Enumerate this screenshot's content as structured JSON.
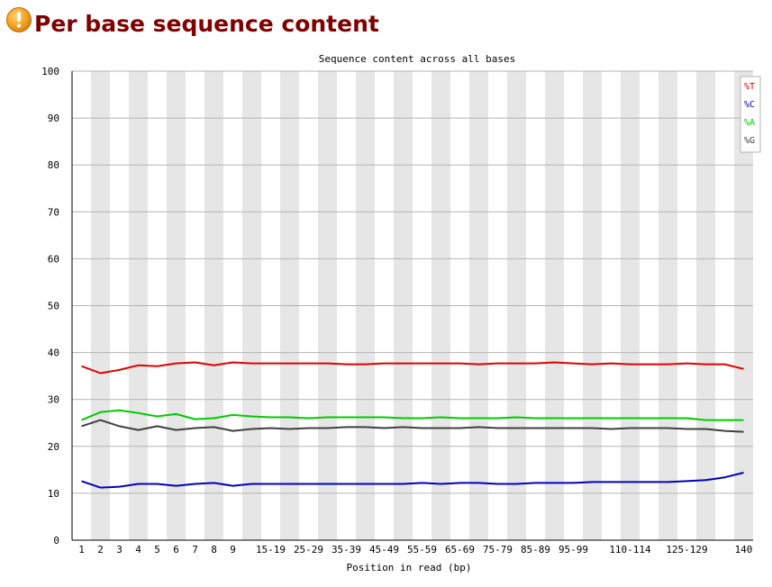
{
  "page": {
    "title": "Per base sequence content",
    "status_icon": "warning-icon",
    "status_color": "#f5a623"
  },
  "chart_data": {
    "type": "line",
    "title": "Sequence content across all bases",
    "xlabel": "Position in read (bp)",
    "ylabel": "",
    "ylim": [
      0,
      100
    ],
    "yticks": [
      0,
      10,
      20,
      30,
      40,
      50,
      60,
      70,
      80,
      90,
      100
    ],
    "grid": true,
    "legend_placement": "top-right",
    "categories": [
      "1",
      "2",
      "3",
      "4",
      "5",
      "6",
      "7",
      "8",
      "9",
      "10-14",
      "15-19",
      "20-24",
      "25-29",
      "30-34",
      "35-39",
      "40-44",
      "45-49",
      "50-54",
      "55-59",
      "60-64",
      "65-69",
      "70-74",
      "75-79",
      "80-84",
      "85-89",
      "90-94",
      "95-99",
      "100-104",
      "105-109",
      "110-114",
      "115-119",
      "120-124",
      "125-129",
      "130-134",
      "135-139",
      "140"
    ],
    "category_labels_shown": [
      "1",
      "2",
      "3",
      "4",
      "5",
      "6",
      "7",
      "8",
      "9",
      "",
      "15-19",
      "",
      "25-29",
      "",
      "35-39",
      "",
      "45-49",
      "",
      "55-59",
      "",
      "65-69",
      "",
      "75-79",
      "",
      "85-89",
      "",
      "95-99",
      "",
      "",
      "110-114",
      "",
      "",
      "125-129",
      "",
      "",
      "140"
    ],
    "series": [
      {
        "name": "%T",
        "color": "#e00000",
        "values": [
          37.1,
          35.6,
          36.3,
          37.3,
          37.1,
          37.7,
          37.9,
          37.3,
          37.9,
          37.7,
          37.7,
          37.7,
          37.7,
          37.7,
          37.5,
          37.5,
          37.7,
          37.7,
          37.7,
          37.7,
          37.7,
          37.5,
          37.7,
          37.7,
          37.7,
          37.9,
          37.7,
          37.5,
          37.7,
          37.5,
          37.5,
          37.5,
          37.7,
          37.5,
          37.5,
          36.5
        ]
      },
      {
        "name": "%C",
        "color": "#0000c0",
        "values": [
          12.6,
          11.2,
          11.4,
          12.0,
          12.0,
          11.6,
          12.0,
          12.2,
          11.6,
          12.0,
          12.0,
          12.0,
          12.0,
          12.0,
          12.0,
          12.0,
          12.0,
          12.0,
          12.2,
          12.0,
          12.2,
          12.2,
          12.0,
          12.0,
          12.2,
          12.2,
          12.2,
          12.4,
          12.4,
          12.4,
          12.4,
          12.4,
          12.6,
          12.8,
          13.4,
          14.4
        ]
      },
      {
        "name": "%A",
        "color": "#00cc00",
        "values": [
          25.6,
          27.3,
          27.7,
          27.1,
          26.4,
          26.9,
          25.8,
          26.0,
          26.7,
          26.4,
          26.2,
          26.2,
          26.0,
          26.2,
          26.2,
          26.2,
          26.2,
          26.0,
          26.0,
          26.2,
          26.0,
          26.0,
          26.0,
          26.2,
          26.0,
          26.0,
          26.0,
          26.0,
          26.0,
          26.0,
          26.0,
          26.0,
          26.0,
          25.6,
          25.6,
          25.6
        ]
      },
      {
        "name": "%G",
        "color": "#404040",
        "values": [
          24.3,
          25.6,
          24.3,
          23.5,
          24.3,
          23.5,
          23.9,
          24.1,
          23.3,
          23.7,
          23.9,
          23.7,
          23.9,
          23.9,
          24.1,
          24.1,
          23.9,
          24.1,
          23.9,
          23.9,
          23.9,
          24.1,
          23.9,
          23.9,
          23.9,
          23.9,
          23.9,
          23.9,
          23.7,
          23.9,
          23.9,
          23.9,
          23.7,
          23.7,
          23.3,
          23.1
        ]
      }
    ]
  }
}
